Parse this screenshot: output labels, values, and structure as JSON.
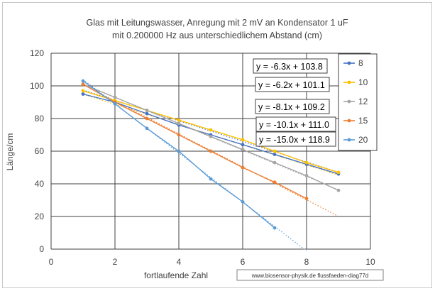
{
  "chart_data": {
    "type": "scatter",
    "title_line1": "Glas mit Leitungswasser, Anregung mit 2 mV an Kondensator 1 uF",
    "title_line2": "mit  0.200000 Hz aus unterschiedlichem Abstand  (cm)",
    "xlabel": "fortlaufende Zahl",
    "ylabel": "Länge/cm",
    "xlim": [
      0,
      10
    ],
    "ylim": [
      0,
      120
    ],
    "xticks": [
      "0",
      "2",
      "4",
      "6",
      "8",
      "10"
    ],
    "yticks": [
      "0",
      "20",
      "40",
      "60",
      "80",
      "100",
      "120"
    ],
    "grid": true,
    "legend_position": "right",
    "watermark": "www.biosensor-physik.de  flussfaeden-diag77d",
    "series": [
      {
        "name": "8",
        "color": "#4472c4",
        "x": [
          1,
          2,
          3,
          4,
          5,
          6,
          7,
          8,
          9
        ],
        "y": [
          95,
          90,
          83,
          76,
          70,
          64,
          58,
          52,
          46
        ],
        "trendline": "y = -6.3x + 103.8",
        "trend": {
          "m": -6.3,
          "b": 103.8,
          "x0": 1,
          "x1": 9
        }
      },
      {
        "name": "10",
        "color": "#ffc000",
        "x": [
          1,
          2,
          3,
          4,
          5,
          6,
          7,
          8,
          9
        ],
        "y": [
          97,
          91,
          85,
          79,
          73,
          67,
          60,
          53,
          47
        ],
        "trendline": "y = -6.2x + 101.1",
        "trend": {
          "m": -6.2,
          "b": 101.1,
          "x0": 1,
          "x1": 9
        }
      },
      {
        "name": "12",
        "color": "#a5a5a5",
        "x": [
          1,
          2,
          3,
          4,
          5,
          6,
          7,
          8,
          9
        ],
        "y": [
          101,
          93,
          85,
          77,
          69,
          61,
          53,
          45,
          36
        ],
        "trendline": "y = -8.1x + 109.2",
        "trend": {
          "m": -8.1,
          "b": 109.2,
          "x0": 1,
          "x1": 9
        }
      },
      {
        "name": "15",
        "color": "#ed7d31",
        "x": [
          1,
          2,
          3,
          4,
          5,
          6,
          7,
          8
        ],
        "y": [
          101,
          90,
          80,
          70,
          60,
          50,
          41,
          31
        ],
        "trendline": "y = -10.1x + 111.0",
        "trend": {
          "m": -10.1,
          "b": 111.0,
          "x0": 1,
          "x1": 9
        }
      },
      {
        "name": "20",
        "color": "#5b9bd5",
        "x": [
          1,
          2,
          3,
          4,
          5,
          6,
          7
        ],
        "y": [
          103,
          89,
          74,
          60,
          43,
          29,
          13
        ],
        "trendline": "y = -15.0x + 118.9",
        "trend": {
          "m": -15.0,
          "b": 118.9,
          "x0": 1,
          "x1": 8
        }
      }
    ]
  }
}
